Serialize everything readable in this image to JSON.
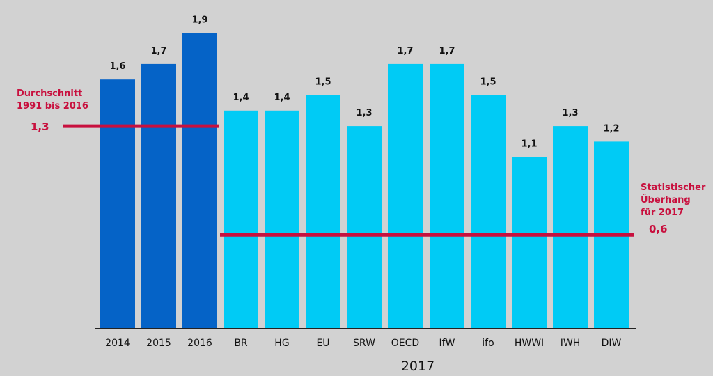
{
  "chart_data": {
    "type": "bar",
    "categories": [
      "2014",
      "2015",
      "2016",
      "BR",
      "HG",
      "EU",
      "SRW",
      "OECD",
      "IfW",
      "ifo",
      "HWWI",
      "IWH",
      "DIW"
    ],
    "values": [
      1.6,
      1.7,
      1.9,
      1.4,
      1.4,
      1.5,
      1.3,
      1.7,
      1.7,
      1.5,
      1.1,
      1.3,
      1.2
    ],
    "value_labels": [
      "1,6",
      "1,7",
      "1,9",
      "1,4",
      "1,4",
      "1,5",
      "1,3",
      "1,7",
      "1,7",
      "1,5",
      "1,1",
      "1,3",
      "1,2"
    ],
    "bar_colors": [
      "#0563c7",
      "#0563c7",
      "#0563c7",
      "#00cbf5",
      "#00cbf5",
      "#00cbf5",
      "#00cbf5",
      "#00cbf5",
      "#00cbf5",
      "#00cbf5",
      "#00cbf5",
      "#00cbf5",
      "#00cbf5"
    ],
    "group_label": "2017",
    "ylim": [
      0,
      1.9
    ],
    "grid": false,
    "reference_lines": [
      {
        "value": 1.3,
        "value_label": "1,3",
        "text_lines": [
          "Durchschnitt",
          "1991 bis 2016"
        ],
        "color": "#c8103e"
      },
      {
        "value": 0.6,
        "value_label": "0,6",
        "text_lines": [
          "Statistischer",
          "Überhang",
          "für 2017"
        ],
        "color": "#c8103e"
      }
    ]
  }
}
